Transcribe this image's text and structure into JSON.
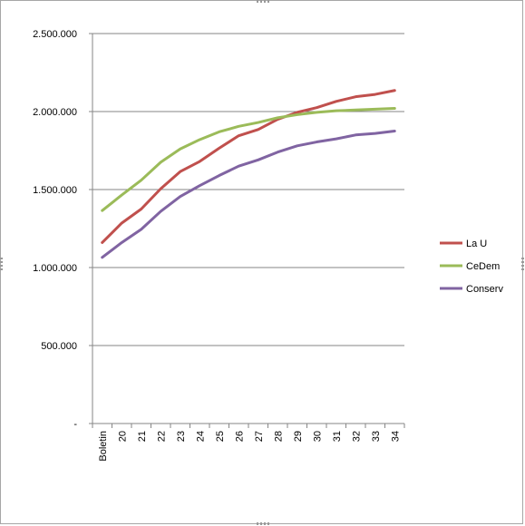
{
  "chart_data": {
    "type": "line",
    "title": "",
    "xlabel": "",
    "ylabel": "",
    "categories": [
      "Boletin",
      "20",
      "21",
      "22",
      "23",
      "24",
      "25",
      "26",
      "27",
      "28",
      "29",
      "30",
      "31",
      "32",
      "33",
      "34"
    ],
    "ylim": [
      0,
      2500000
    ],
    "y_ticks": [
      0,
      500000,
      1000000,
      1500000,
      2000000,
      2500000
    ],
    "y_tick_labels": [
      "-",
      "500.000",
      "1.000.000",
      "1.500.000",
      "2.000.000",
      "2.500.000"
    ],
    "grid": true,
    "legend_position": "right",
    "series": [
      {
        "name": "La U",
        "color": "#c0504d",
        "values": [
          1160000,
          1285000,
          1375000,
          1505000,
          1615000,
          1680000,
          1765000,
          1845000,
          1885000,
          1950000,
          1995000,
          2025000,
          2065000,
          2095000,
          2110000,
          2135000
        ]
      },
      {
        "name": "CeDem",
        "color": "#9bbb59",
        "values": [
          1365000,
          1465000,
          1560000,
          1675000,
          1760000,
          1820000,
          1870000,
          1905000,
          1930000,
          1960000,
          1980000,
          1995000,
          2005000,
          2010000,
          2015000,
          2020000
        ]
      },
      {
        "name": "Conserv",
        "color": "#8064a2",
        "values": [
          1065000,
          1160000,
          1245000,
          1360000,
          1455000,
          1525000,
          1590000,
          1650000,
          1690000,
          1740000,
          1780000,
          1805000,
          1825000,
          1850000,
          1860000,
          1875000
        ]
      }
    ]
  }
}
